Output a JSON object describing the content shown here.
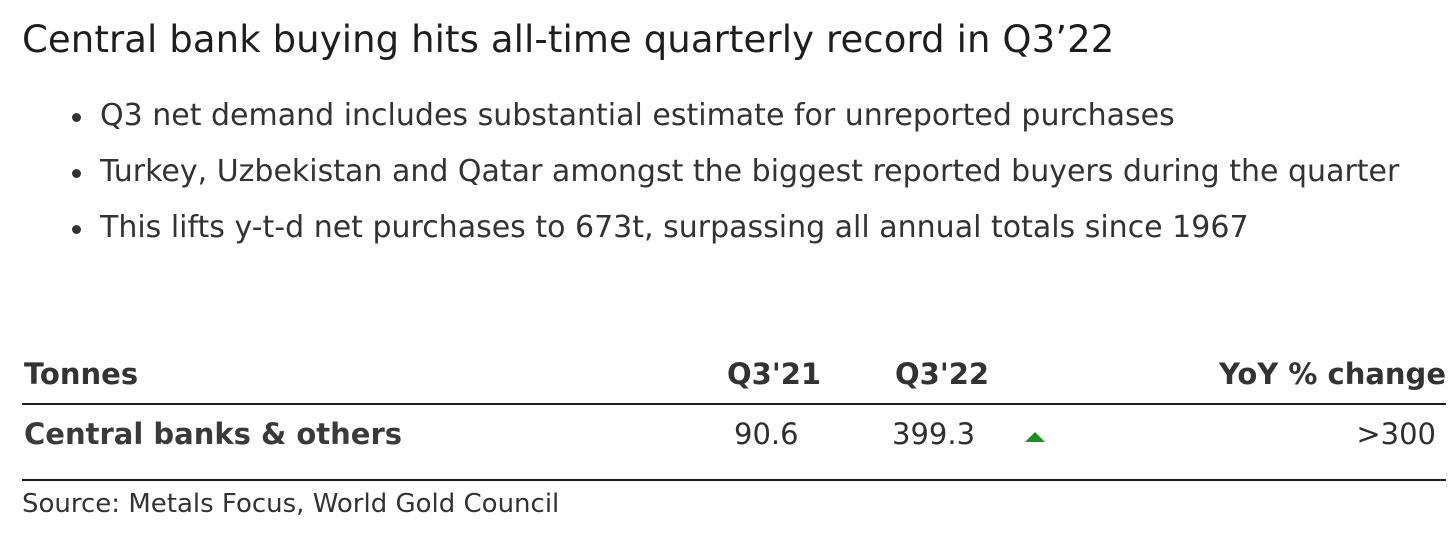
{
  "title": "Central bank buying hits all-time quarterly record in Q3’22",
  "bullets": [
    "Q3 net demand includes substantial estimate for unreported purchases",
    "Turkey, Uzbekistan and Qatar amongst the biggest reported buyers during the quarter",
    "This lifts y-t-d net purchases to 673t, surpassing all annual totals since 1967"
  ],
  "table": {
    "headers": [
      "Tonnes",
      "Q3'21",
      "Q3'22",
      "YoY % change"
    ],
    "rows": [
      {
        "label": "Central banks & others",
        "q321": "90.6",
        "q322": "399.3",
        "trend": "up",
        "yoy": ">300"
      }
    ]
  },
  "source": "Source: Metals Focus, World Gold Council",
  "colors": {
    "up_arrow": "#1f8f1f",
    "text": "#333333"
  }
}
